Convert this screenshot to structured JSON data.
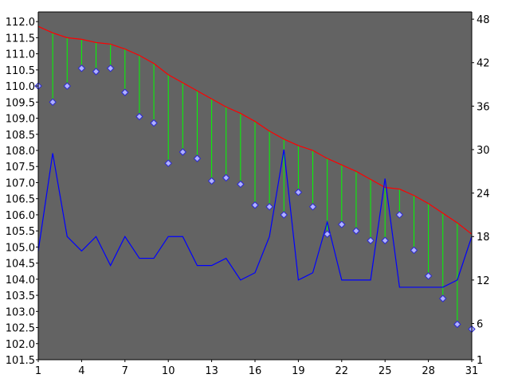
{
  "chart_data": {
    "type": "line",
    "title": "",
    "xlabel": "",
    "ylabel": "",
    "x": [
      1,
      2,
      3,
      4,
      5,
      6,
      7,
      8,
      9,
      10,
      11,
      12,
      13,
      14,
      15,
      16,
      17,
      18,
      19,
      20,
      21,
      22,
      23,
      24,
      25,
      26,
      27,
      28,
      29,
      30,
      31
    ],
    "x_ticks": [
      1,
      4,
      7,
      10,
      13,
      16,
      19,
      22,
      25,
      28,
      31
    ],
    "x_tick_labels": [
      "1",
      "4",
      "7",
      "10",
      "13",
      "16",
      "19",
      "22",
      "25",
      "28",
      "31"
    ],
    "xlim": [
      1,
      31
    ],
    "y_left_ticks": [
      101.5,
      102.0,
      102.5,
      103.0,
      103.5,
      104.0,
      104.5,
      105.0,
      105.5,
      106.0,
      106.5,
      107.0,
      107.5,
      108.0,
      108.5,
      109.0,
      109.5,
      110.0,
      110.5,
      111.0,
      111.5,
      112.0
    ],
    "y_left_tick_labels": [
      "101.5",
      "102.0",
      "102.5",
      "103.0",
      "103.5",
      "104.0",
      "104.5",
      "105.0",
      "105.5",
      "106.0",
      "106.5",
      "107.0",
      "107.5",
      "108.0",
      "108.5",
      "109.0",
      "109.5",
      "110.0",
      "110.5",
      "111.0",
      "111.5",
      "112.0"
    ],
    "ylim_left": [
      101.5,
      112.3
    ],
    "y_right_ticks": [
      1,
      6,
      12,
      18,
      24,
      30,
      36,
      42,
      48
    ],
    "y_right_tick_labels": [
      "1",
      "6",
      "12",
      "18",
      "24",
      "30",
      "36",
      "42",
      "48"
    ],
    "ylim_right": [
      1,
      49
    ],
    "grid": false,
    "legend": "none",
    "background_color": "#636363",
    "series": [
      {
        "axis": "left",
        "style": "line",
        "color": "#ff0000",
        "values": [
          111.85,
          111.65,
          111.5,
          111.45,
          111.35,
          111.3,
          111.15,
          110.95,
          110.7,
          110.35,
          110.1,
          109.85,
          109.6,
          109.35,
          109.15,
          108.9,
          108.6,
          108.35,
          108.15,
          108.0,
          107.75,
          107.55,
          107.35,
          107.1,
          106.85,
          106.8,
          106.6,
          106.35,
          106.05,
          105.75,
          105.4
        ]
      },
      {
        "axis": "left",
        "style": "diamond-markers",
        "color": "#b0b0ff",
        "values": [
          110.0,
          109.5,
          110.0,
          110.55,
          110.45,
          110.55,
          109.8,
          109.05,
          108.85,
          107.6,
          107.95,
          107.75,
          107.05,
          107.15,
          106.95,
          106.3,
          106.25,
          106.0,
          106.7,
          106.25,
          105.4,
          105.7,
          105.5,
          105.2,
          105.2,
          106.0,
          104.9,
          104.1,
          103.4,
          102.6,
          102.45
        ]
      },
      {
        "axis": "right",
        "style": "line",
        "color": "#0000ff",
        "values": [
          16,
          29.5,
          18,
          16,
          18,
          14,
          18,
          15,
          15,
          18,
          18,
          14,
          14,
          15,
          12,
          13,
          18,
          30,
          12,
          13,
          20,
          12,
          12,
          12,
          26,
          11,
          11,
          11,
          11,
          12,
          18
        ]
      }
    ]
  }
}
